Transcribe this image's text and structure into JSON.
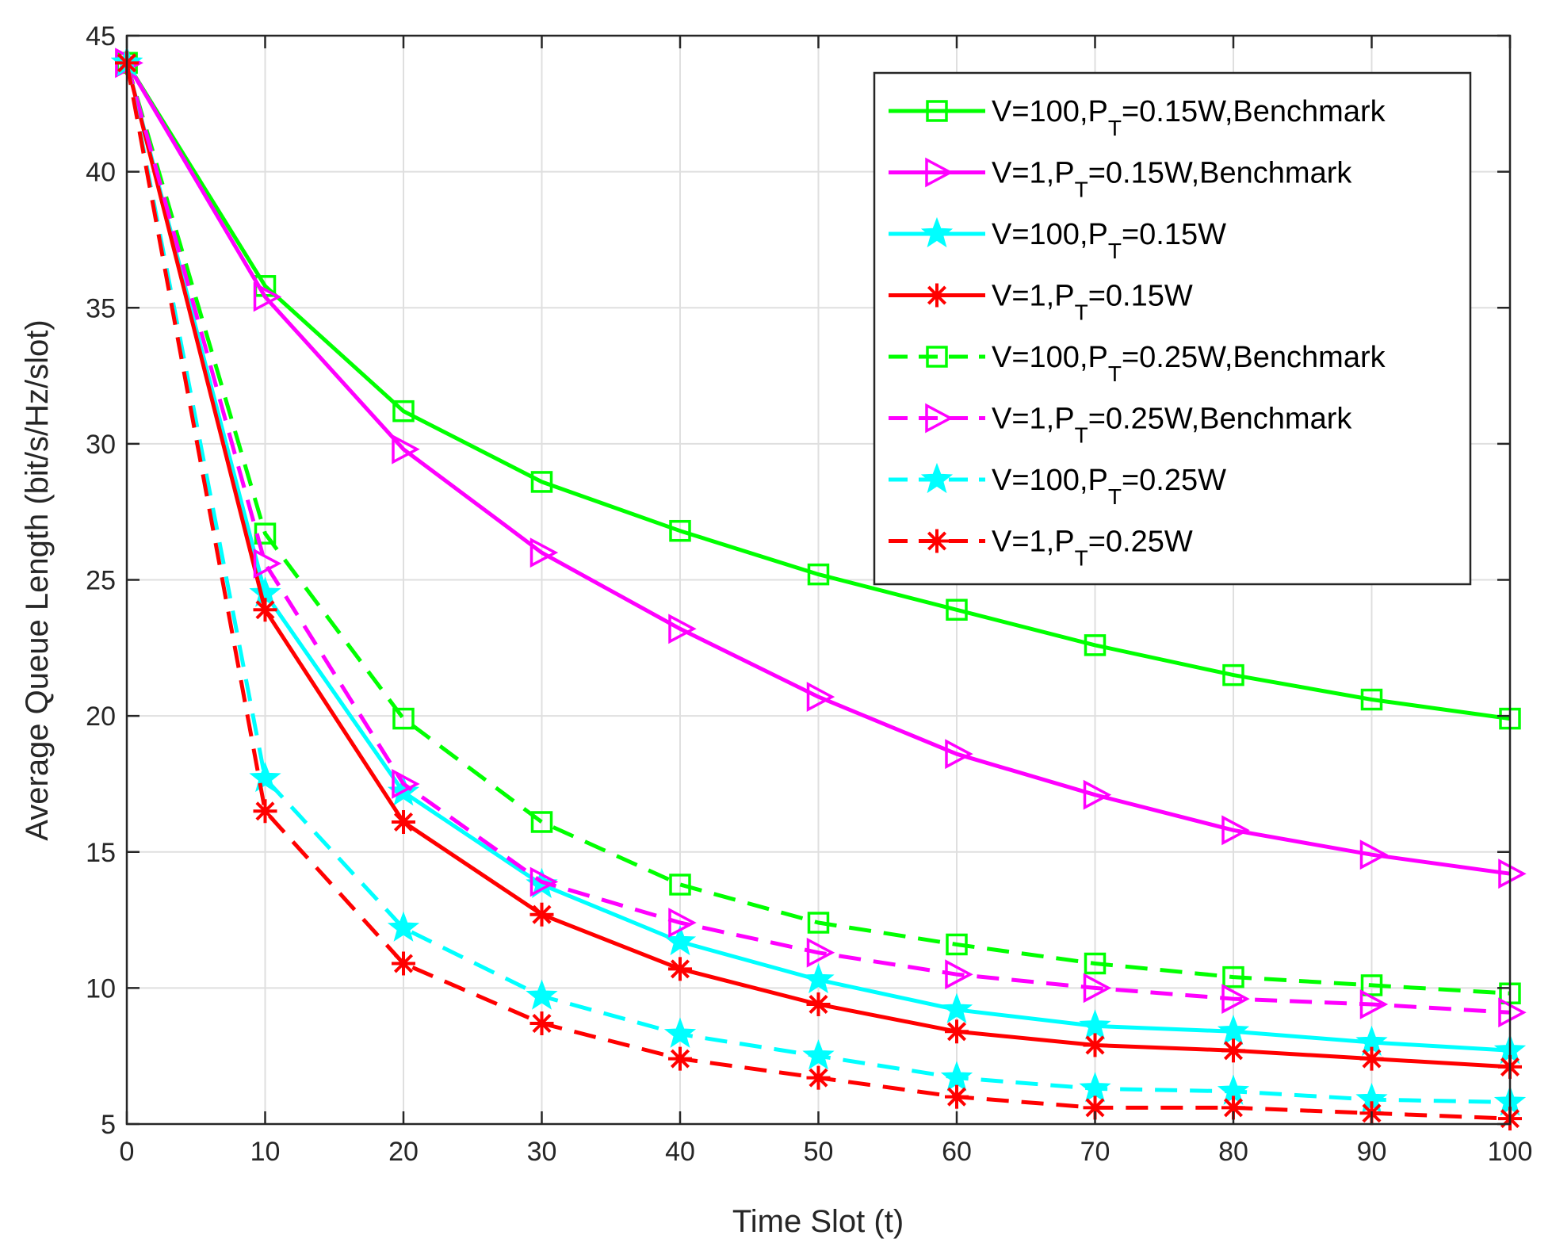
{
  "chart_data": {
    "type": "line",
    "title": "",
    "xlabel": "Time Slot (t)",
    "ylabel": "Average Queue Length (bit/s/Hz/slot)",
    "xlim": [
      0,
      100
    ],
    "ylim": [
      5,
      45
    ],
    "grid": true,
    "legend_position": "top-right",
    "x": [
      0,
      10,
      20,
      30,
      40,
      50,
      60,
      70,
      80,
      90,
      100
    ],
    "x_ticks": [
      "0",
      "10",
      "20",
      "30",
      "40",
      "50",
      "60",
      "70",
      "80",
      "90",
      "100"
    ],
    "y_ticks": [
      "5",
      "10",
      "15",
      "20",
      "25",
      "30",
      "35",
      "40",
      "45"
    ],
    "series": [
      {
        "name_main": "V=100,P",
        "name_sub": "T",
        "name_tail": "=0.15W,Benchmark",
        "color": "#00ff00",
        "dash": "solid",
        "marker": "square",
        "values": [
          44.0,
          35.8,
          31.2,
          28.6,
          26.8,
          25.2,
          23.9,
          22.6,
          21.5,
          20.6,
          19.9
        ]
      },
      {
        "name_main": "V=1,P",
        "name_sub": "T",
        "name_tail": "=0.15W,Benchmark",
        "color": "#ff00ff",
        "dash": "solid",
        "marker": "triangle-right",
        "values": [
          44.0,
          35.4,
          29.8,
          26.0,
          23.2,
          20.7,
          18.6,
          17.1,
          15.8,
          14.9,
          14.2
        ]
      },
      {
        "name_main": "V=100,P",
        "name_sub": "T",
        "name_tail": "=0.15W",
        "color": "#00ffff",
        "dash": "solid",
        "marker": "star",
        "values": [
          44.0,
          24.5,
          17.2,
          13.8,
          11.7,
          10.3,
          9.2,
          8.6,
          8.4,
          8.0,
          7.7
        ]
      },
      {
        "name_main": "V=1,P",
        "name_sub": "T",
        "name_tail": "=0.15W",
        "color": "#ff0000",
        "dash": "solid",
        "marker": "asterisk",
        "values": [
          44.0,
          23.9,
          16.1,
          12.7,
          10.7,
          9.4,
          8.4,
          7.9,
          7.7,
          7.4,
          7.1
        ]
      },
      {
        "name_main": "V=100,P",
        "name_sub": "T",
        "name_tail": "=0.25W,Benchmark",
        "color": "#00ff00",
        "dash": "dashed",
        "marker": "square",
        "values": [
          44.0,
          26.7,
          19.9,
          16.1,
          13.8,
          12.4,
          11.6,
          10.9,
          10.4,
          10.1,
          9.8
        ]
      },
      {
        "name_main": "V=1,P",
        "name_sub": "T",
        "name_tail": "=0.25W,Benchmark",
        "color": "#ff00ff",
        "dash": "dashed",
        "marker": "triangle-right",
        "values": [
          44.0,
          25.6,
          17.5,
          13.9,
          12.4,
          11.3,
          10.5,
          10.0,
          9.6,
          9.4,
          9.1
        ]
      },
      {
        "name_main": "V=100,P",
        "name_sub": "T",
        "name_tail": "=0.25W",
        "color": "#00ffff",
        "dash": "dashed",
        "marker": "star",
        "values": [
          44.0,
          17.7,
          12.2,
          9.7,
          8.3,
          7.5,
          6.7,
          6.3,
          6.2,
          5.9,
          5.8
        ]
      },
      {
        "name_main": "V=1,P",
        "name_sub": "T",
        "name_tail": "=0.25W",
        "color": "#ff0000",
        "dash": "dashed",
        "marker": "asterisk",
        "values": [
          44.0,
          16.5,
          10.9,
          8.7,
          7.4,
          6.7,
          6.0,
          5.6,
          5.6,
          5.4,
          5.2
        ]
      }
    ]
  }
}
